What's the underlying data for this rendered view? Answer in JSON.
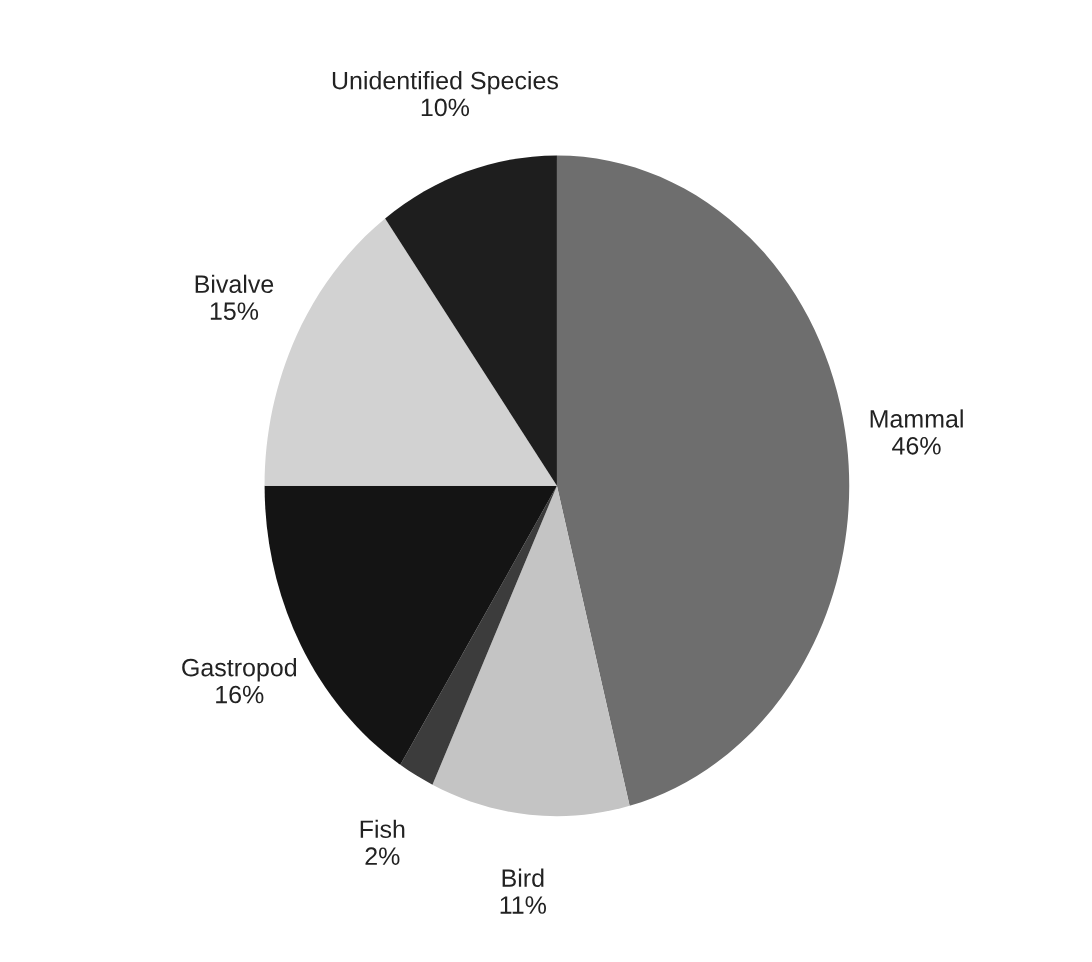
{
  "chart_data": {
    "type": "pie",
    "categories": [
      "Mammal",
      "Bird",
      "Fish",
      "Gastropod",
      "Bivalve",
      "Unidentified Species"
    ],
    "values": [
      46,
      11,
      2,
      16,
      15,
      10
    ],
    "value_labels": [
      "46%",
      "11%",
      "2%",
      "16%",
      "15%",
      "10%"
    ],
    "colors": [
      "#6e6e6e",
      "#c4c4c4",
      "#3c3c3c",
      "#141414",
      "#d2d2d2",
      "#1e1e1e"
    ],
    "legend": false
  }
}
